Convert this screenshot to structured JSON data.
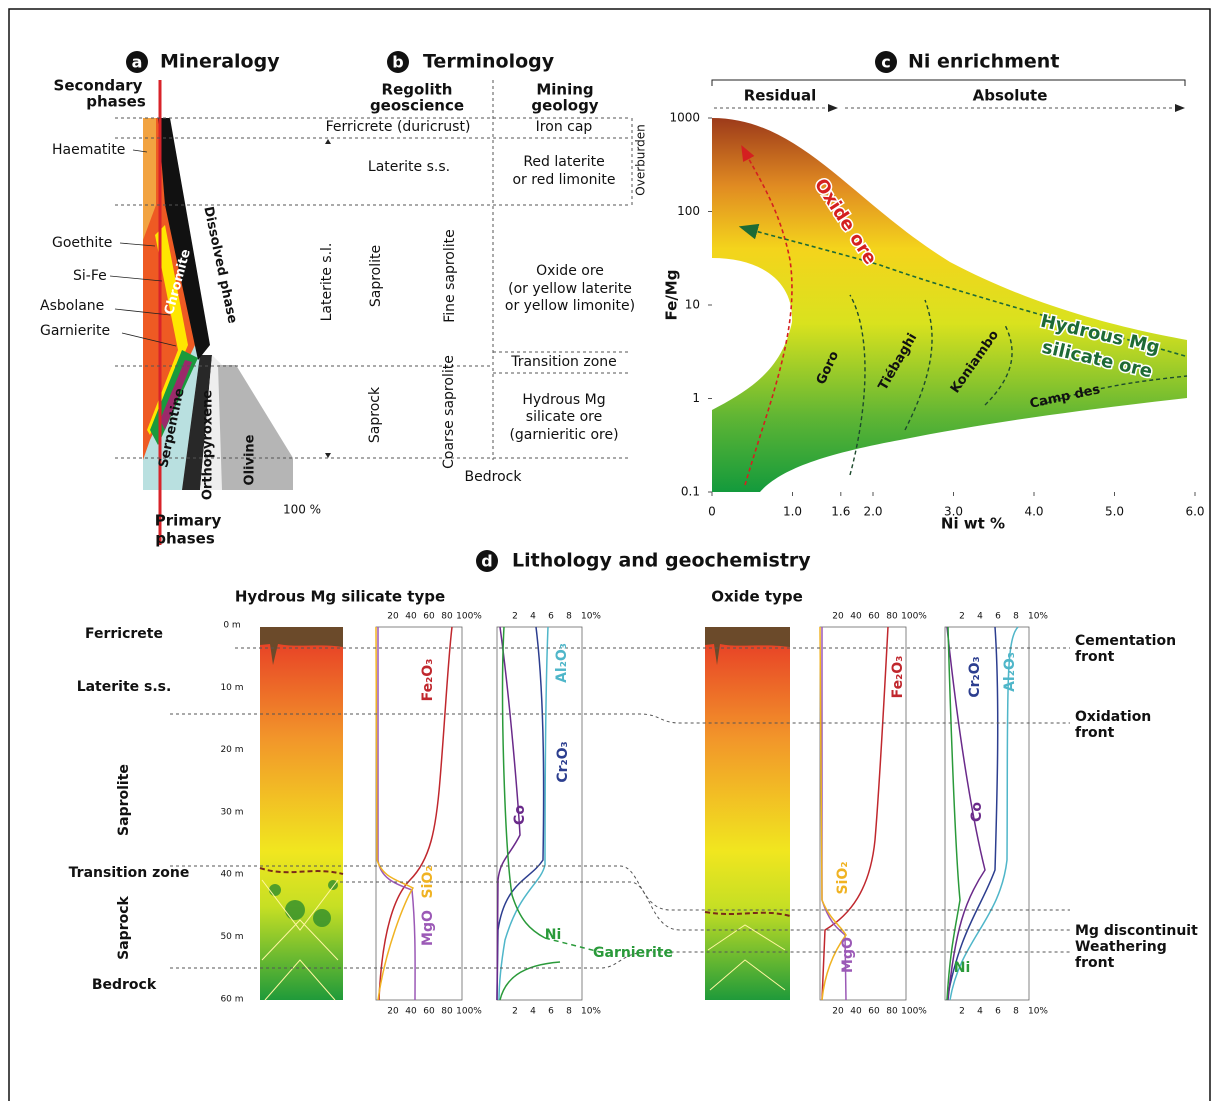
{
  "panel_a": {
    "letter": "a",
    "title": "Mineralogy",
    "secondary_phases": [
      "Secondary",
      "phases"
    ],
    "primary_phases": [
      "Primary",
      "phases"
    ],
    "minerals": [
      "Haematite",
      "Goethite",
      "Si-Fe",
      "Asbolane",
      "Garnierite"
    ],
    "bands": [
      "Chromite",
      "Dissolved phase",
      "Serpentine",
      "Orthopyroxene",
      "Olivine"
    ],
    "scale_label": "100 %"
  },
  "panel_b": {
    "letter": "b",
    "title": "Terminology",
    "headers": [
      [
        "Regolith",
        "geoscience"
      ],
      [
        "Mining",
        "geology"
      ]
    ],
    "regolith": [
      "Ferricrete (duricrust)",
      "Laterite s.s.",
      "Laterite s.l.",
      "Saprolite",
      "Fine saprolite",
      "Saprock",
      "Coarse saprolite",
      "Bedrock"
    ],
    "mining": [
      [
        "Iron cap"
      ],
      [
        "Red laterite",
        "or red limonite"
      ],
      [
        "Oxide ore",
        "(or yellow laterite",
        "or yellow limonite)"
      ],
      [
        "Transition zone"
      ],
      [
        "Hydrous Mg",
        "silicate ore",
        "(garnieritic ore)"
      ]
    ],
    "overburden": "Overburden"
  },
  "panel_c": {
    "letter": "c",
    "title": "Ni enrichment",
    "regimes": [
      "Residual",
      "Absolute"
    ],
    "x_label": "Ni wt %",
    "y_label": "Fe/Mg",
    "xlim": [
      0,
      6
    ],
    "ylim": [
      0.1,
      1000
    ],
    "log_y": true,
    "xticks": [
      0,
      {
        "value": 1,
        "label": "1.0"
      },
      1.6,
      {
        "value": 2,
        "label": "2.0"
      },
      {
        "value": 3,
        "label": "3.0"
      },
      {
        "value": 4,
        "label": "4.0"
      },
      {
        "value": 5,
        "label": "5.0"
      },
      {
        "value": 6,
        "label": "6.0"
      }
    ],
    "yticks": [
      0.1,
      1,
      10,
      100,
      1000
    ],
    "ore_labels": [
      "Oxide ore",
      [
        "Hydrous Mg",
        "silicate ore"
      ]
    ],
    "deposits": [
      "Goro",
      "Tiébaghi",
      "Koniambo",
      "Camp des"
    ]
  },
  "panel_d": {
    "letter": "d",
    "title": "Lithology and geochemistry",
    "types": [
      "Hydrous Mg silicate type",
      "Oxide type"
    ],
    "horizons": [
      "Ferricrete",
      "Laterite s.s.",
      "Saprolite",
      "Transition zone",
      "Saprock",
      "Bedrock"
    ],
    "depths": [
      "0 m",
      "10 m",
      "20 m",
      "30 m",
      "40 m",
      "50 m",
      "60 m"
    ],
    "major_scale": [
      "20",
      "40",
      "60",
      "80",
      "100%"
    ],
    "trace_scale": [
      "2",
      "4",
      "6",
      "8",
      "10%"
    ],
    "fronts": [
      [
        "Cementation",
        "front"
      ],
      [
        "Oxidation",
        "front"
      ],
      [
        "Mg discontinuit"
      ],
      [
        "Weathering",
        "front"
      ]
    ],
    "species": {
      "fe2o3": "Fe₂O₃",
      "sio2": "SiO₂",
      "mgo": "MgO",
      "al2o3": "Al₂O₃",
      "cr2o3": "Cr₂O₃",
      "co": "Co",
      "ni": "Ni"
    },
    "garnierite": "Garnierite"
  }
}
